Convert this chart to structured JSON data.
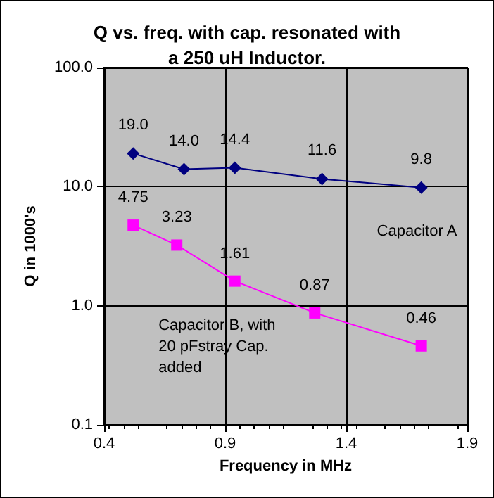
{
  "chart_data": {
    "type": "line",
    "title": "Q vs. freq. with cap. resonated with\na 250 uH Inductor.",
    "xlabel": "Frequency in MHz",
    "ylabel": "Q in 1000's",
    "series": [
      {
        "name": "Capacitor A",
        "color": "#000080",
        "marker": "diamond",
        "x": [
          0.52,
          0.73,
          0.94,
          1.3,
          1.71
        ],
        "values": [
          19.0,
          14.0,
          14.4,
          11.6,
          9.8
        ],
        "value_labels": [
          "19.0",
          "14.0",
          "14.4",
          "11.6",
          "9.8"
        ]
      },
      {
        "name": "Capacitor B, with\n20 pFstray Cap.\nadded",
        "color": "#ff00ff",
        "marker": "square",
        "x": [
          0.52,
          0.7,
          0.94,
          1.27,
          1.71
        ],
        "values": [
          4.75,
          3.23,
          1.61,
          0.87,
          0.46
        ],
        "value_labels": [
          "4.75",
          "3.23",
          "1.61",
          "0.87",
          "0.46"
        ]
      }
    ],
    "xlim": [
      0.4,
      1.9
    ],
    "xticks": [
      0.4,
      0.9,
      1.4,
      1.9
    ],
    "ylim": [
      0.1,
      100
    ],
    "yticks": [
      {
        "value": 0.1,
        "label": "0.1"
      },
      {
        "value": 1,
        "label": "1.0"
      },
      {
        "value": 10,
        "label": "10.0"
      },
      {
        "value": 100,
        "label": "100.0"
      }
    ],
    "log": "y",
    "grid": true
  }
}
